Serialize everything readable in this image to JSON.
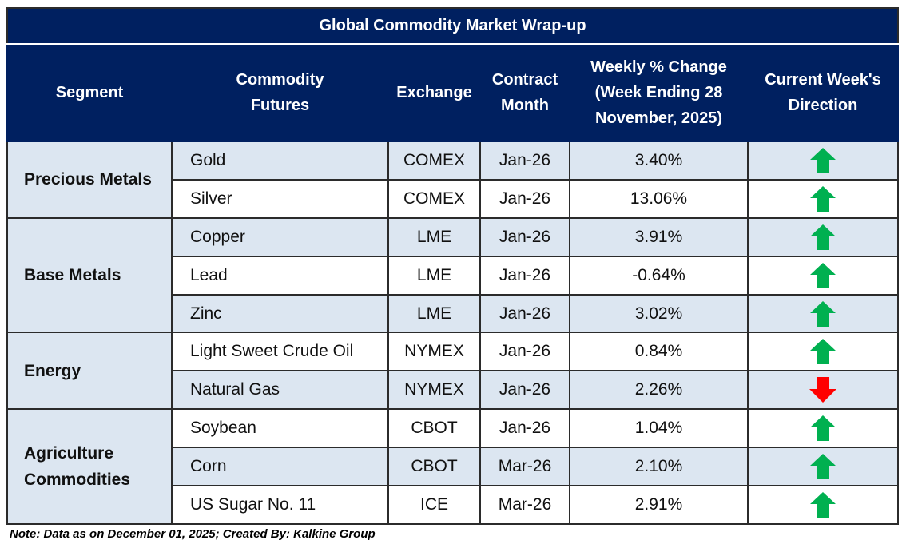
{
  "title": "Global Commodity Market Wrap-up",
  "headers": [
    "Segment",
    "Commodity Futures",
    "Exchange",
    "Contract Month",
    "Weekly % Change (Week Ending  28 November, 2025)",
    "Current Week's Direction"
  ],
  "segments": [
    "Precious Metals",
    "Base Metals",
    "Energy",
    "Agriculture Commodities"
  ],
  "rows": [
    {
      "commodity": "Gold",
      "exchange": "COMEX",
      "month": "Jan-26",
      "change": "3.40%",
      "direction": "up"
    },
    {
      "commodity": "Silver",
      "exchange": "COMEX",
      "month": "Jan-26",
      "change": "13.06%",
      "direction": "up"
    },
    {
      "commodity": "Copper",
      "exchange": "LME",
      "month": "Jan-26",
      "change": "3.91%",
      "direction": "up"
    },
    {
      "commodity": "Lead",
      "exchange": "LME",
      "month": "Jan-26",
      "change": "-0.64%",
      "direction": "up"
    },
    {
      "commodity": "Zinc",
      "exchange": "LME",
      "month": "Jan-26",
      "change": "3.02%",
      "direction": "up"
    },
    {
      "commodity": "Light Sweet Crude Oil",
      "exchange": "NYMEX",
      "month": "Jan-26",
      "change": "0.84%",
      "direction": "up"
    },
    {
      "commodity": "Natural Gas",
      "exchange": "NYMEX",
      "month": "Jan-26",
      "change": "2.26%",
      "direction": "down"
    },
    {
      "commodity": "Soybean",
      "exchange": "CBOT",
      "month": "Jan-26",
      "change": "1.04%",
      "direction": "up"
    },
    {
      "commodity": "Corn",
      "exchange": "CBOT",
      "month": "Mar-26",
      "change": "2.10%",
      "direction": "up"
    },
    {
      "commodity": "US Sugar No. 11",
      "exchange": "ICE",
      "month": "Mar-26",
      "change": "2.91%",
      "direction": "up"
    }
  ],
  "colors": {
    "header": "#002060",
    "shade": "#dce6f1",
    "up": "#00b050",
    "down": "#ff0000"
  },
  "note": "Note: Data as on December 01, 2025; Created By: Kalkine Group"
}
